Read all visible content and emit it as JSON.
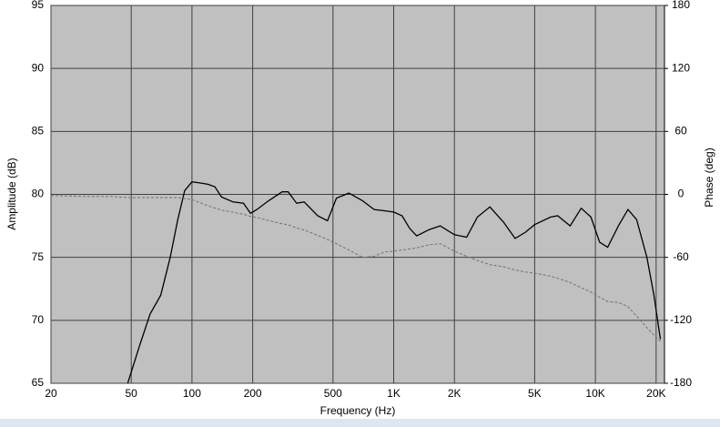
{
  "chart_data": {
    "type": "line",
    "x_label": "Frequency (Hz)",
    "y_label": "Amplitude (dB)",
    "y2_label": "Phase (deg)",
    "xscale": "log",
    "grid": true,
    "xlim": [
      20,
      22000
    ],
    "xticks": [
      20,
      50,
      100,
      200,
      500,
      {
        "value": 1000,
        "label": "1K"
      },
      {
        "value": 2000,
        "label": "2K"
      },
      {
        "value": 5000,
        "label": "5K"
      },
      {
        "value": 10000,
        "label": "10K"
      },
      {
        "value": 20000,
        "label": "20K"
      }
    ],
    "ylim": [
      65,
      95
    ],
    "yticks": [
      65,
      70,
      75,
      80,
      85,
      90,
      95
    ],
    "y2lim": [
      -180,
      180
    ],
    "y2ticks": [
      -180,
      -120,
      -60,
      0,
      60,
      120,
      180
    ],
    "x": [
      20,
      30,
      40,
      48,
      55,
      62,
      70,
      78,
      85,
      92,
      100,
      110,
      120,
      130,
      140,
      160,
      180,
      195,
      210,
      240,
      280,
      300,
      330,
      360,
      420,
      470,
      520,
      600,
      700,
      800,
      900,
      1000,
      1100,
      1200,
      1300,
      1500,
      1700,
      2000,
      2300,
      2600,
      3000,
      3500,
      4000,
      4500,
      5000,
      6000,
      6500,
      7500,
      8500,
      9500,
      10500,
      11500,
      13000,
      14500,
      16000,
      18000,
      19500,
      21000
    ],
    "series": [
      {
        "name": "Amplitude",
        "color": "#000000",
        "dashed": false,
        "values": [
          null,
          null,
          null,
          65,
          68,
          70.5,
          72,
          75,
          78,
          80.3,
          81,
          80.9,
          80.8,
          80.6,
          79.8,
          79.4,
          79.3,
          78.5,
          78.8,
          79.5,
          80.2,
          80.2,
          79.3,
          79.4,
          78.3,
          77.9,
          79.7,
          80.1,
          79.5,
          78.8,
          78.7,
          78.6,
          78.3,
          77.3,
          76.7,
          77.2,
          77.5,
          76.8,
          76.6,
          78.2,
          79,
          77.8,
          76.5,
          77,
          77.6,
          78.2,
          78.3,
          77.5,
          78.9,
          78.2,
          76.2,
          75.8,
          77.5,
          78.8,
          78,
          75,
          72,
          68.5
        ]
      },
      {
        "name": "Phase",
        "color": "#707070",
        "dashed": true,
        "axis": "y2",
        "values": [
          -1,
          -2,
          -2,
          -3,
          -3,
          -3,
          -3,
          -3,
          -3,
          -4,
          -5,
          -8,
          -11,
          -13,
          -15,
          -17,
          -19,
          -21,
          -22,
          -25,
          -28,
          -29,
          -32,
          -34,
          -39,
          -43,
          -47,
          -53,
          -60,
          -59,
          -55,
          -54,
          -53,
          -52,
          -51,
          -48,
          -47,
          -54,
          -59,
          -63,
          -67,
          -69,
          -72,
          -74,
          -75,
          -78,
          -80,
          -84,
          -89,
          -93,
          -98,
          -102,
          -103,
          -107,
          -116,
          -127,
          -134,
          -140
        ]
      }
    ]
  }
}
